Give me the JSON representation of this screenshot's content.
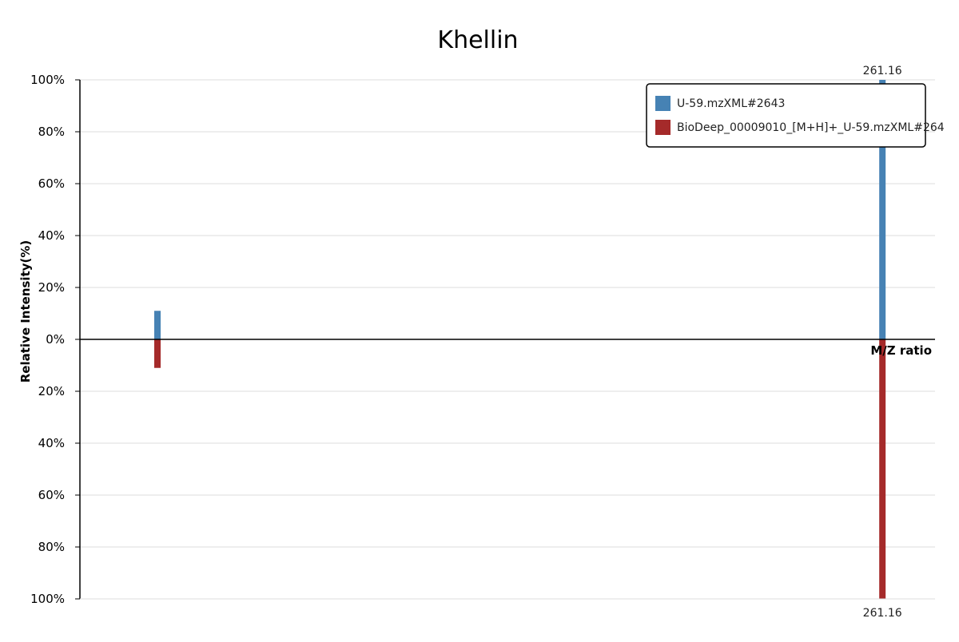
{
  "chart_data": {
    "type": "bar",
    "title": "Khellin",
    "xlabel": "M/Z ratio",
    "ylabel": "Relative Intensity(%)",
    "ylim": [
      -100,
      100
    ],
    "xlim": [
      50,
      275
    ],
    "y_ticks": [
      {
        "value": 100,
        "label": "100%"
      },
      {
        "value": 80,
        "label": "80%"
      },
      {
        "value": 60,
        "label": "60%"
      },
      {
        "value": 40,
        "label": "40%"
      },
      {
        "value": 20,
        "label": "20%"
      },
      {
        "value": 0,
        "label": "0%"
      },
      {
        "value": -20,
        "label": "20%"
      },
      {
        "value": -40,
        "label": "40%"
      },
      {
        "value": -60,
        "label": "60%"
      },
      {
        "value": -80,
        "label": "80%"
      },
      {
        "value": -100,
        "label": "100%"
      }
    ],
    "grid": true,
    "legend_position": "top-right",
    "series": [
      {
        "name": "U-59.mzXML#2643",
        "color": "#4682b4",
        "direction": "up",
        "peaks": [
          {
            "mz": 70.4,
            "intensity": 11
          },
          {
            "mz": 261.16,
            "intensity": 100,
            "label": "261.16"
          }
        ]
      },
      {
        "name": "BioDeep_00009010_[M+H]+_U-59.mzXML#264",
        "color": "#a52a2a",
        "direction": "down",
        "peaks": [
          {
            "mz": 70.4,
            "intensity": 11
          },
          {
            "mz": 261.16,
            "intensity": 100,
            "label": "261.16"
          }
        ]
      }
    ]
  }
}
